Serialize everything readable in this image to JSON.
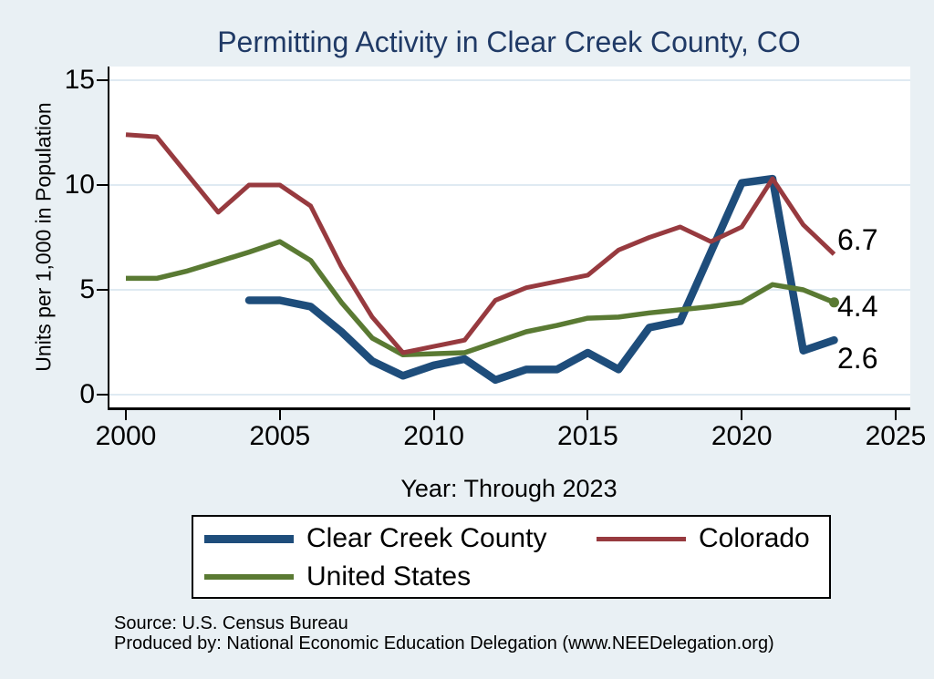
{
  "title": "Permitting Activity in Clear Creek County, CO",
  "chart_data": {
    "type": "line",
    "x": [
      2000,
      2001,
      2002,
      2003,
      2004,
      2005,
      2006,
      2007,
      2008,
      2009,
      2010,
      2011,
      2012,
      2013,
      2014,
      2015,
      2016,
      2017,
      2018,
      2019,
      2020,
      2021,
      2022,
      2023
    ],
    "series": [
      {
        "id": "clear_creek",
        "name": "Clear Creek County",
        "color": "#1e4d7b",
        "end_label": "2.6",
        "values": [
          null,
          null,
          null,
          null,
          4.5,
          4.5,
          4.2,
          3.0,
          1.6,
          0.9,
          1.4,
          1.7,
          0.7,
          1.2,
          1.2,
          2.0,
          1.2,
          3.2,
          3.5,
          6.8,
          10.1,
          10.3,
          2.1,
          2.6
        ]
      },
      {
        "id": "colorado",
        "name": "Colorado",
        "color": "#973a3f",
        "end_label": "6.7",
        "values": [
          12.4,
          12.3,
          10.5,
          8.7,
          10.0,
          10.0,
          9.0,
          6.1,
          3.7,
          2.0,
          2.3,
          2.6,
          4.5,
          5.1,
          5.4,
          5.7,
          6.9,
          7.5,
          8.0,
          7.3,
          8.0,
          10.3,
          8.1,
          6.7
        ]
      },
      {
        "id": "us",
        "name": "United States",
        "color": "#5a7a33",
        "end_label": "4.4",
        "end_marker": true,
        "values": [
          5.55,
          5.55,
          5.9,
          6.35,
          6.8,
          7.3,
          6.4,
          4.4,
          2.7,
          1.9,
          1.95,
          2.0,
          2.5,
          3.0,
          3.3,
          3.65,
          3.7,
          3.9,
          4.05,
          4.2,
          4.4,
          5.25,
          5.0,
          4.4
        ]
      }
    ],
    "xlabel": "Year: Through 2023",
    "ylabel": "Units per 1,000 in Population",
    "x_ticks": [
      2000,
      2005,
      2010,
      2015,
      2020,
      2025
    ],
    "y_ticks": [
      0,
      5,
      10,
      15
    ],
    "xlim": [
      2000,
      2025
    ],
    "ylim": [
      0,
      15
    ],
    "grid": true,
    "legend_position": "bottom"
  },
  "colors": {
    "background": "#e9f0f4",
    "plot_background": "#ffffff",
    "gridline": "#dfeaf2",
    "axis": "#000000",
    "title": "#203a66"
  },
  "footer": {
    "line1": "Source: U.S. Census Bureau",
    "line2": "Produced by: National Economic Education Delegation (www.NEEDelegation.org)"
  }
}
